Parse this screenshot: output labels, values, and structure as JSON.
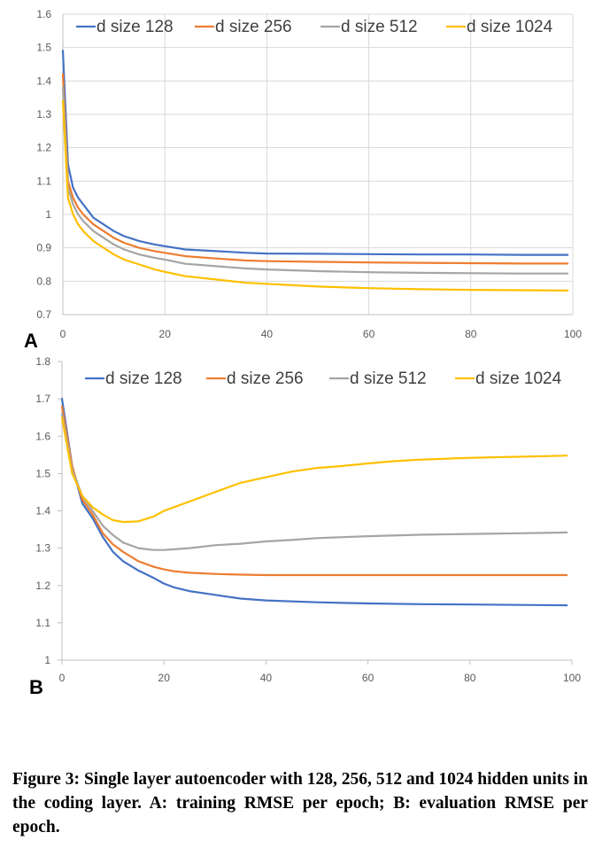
{
  "figure_caption": "Figure 3: Single layer autoencoder with 128, 256, 512 and 1024 hidden units in the coding layer. A: training RMSE per epoch; B: evaluation RMSE per epoch.",
  "colors": {
    "d size 128": "#4472c4",
    "d size 256": "#ed7d31",
    "d size 512": "#a5a5a5",
    "d size 1024": "#ffc000",
    "grid": "#d9d9d9",
    "axis": "#bfbfbf"
  },
  "chart_data": [
    {
      "panel": "A",
      "type": "line",
      "legend_position": "top",
      "grid": true,
      "xlim": [
        0,
        100
      ],
      "ylim": [
        0.7,
        1.6
      ],
      "x_ticks": [
        "0",
        "20",
        "40",
        "60",
        "80",
        "100"
      ],
      "y_ticks": [
        "0.7",
        "0.8",
        "0.9",
        "1",
        "1.1",
        "1.2",
        "1.3",
        "1.4",
        "1.5",
        "1.6"
      ],
      "series": [
        {
          "name": "d size 128",
          "x": [
            0,
            1,
            2,
            3,
            4,
            5,
            6,
            8,
            10,
            12,
            15,
            18,
            20,
            24,
            30,
            36,
            40,
            50,
            60,
            70,
            80,
            90,
            99
          ],
          "y": [
            1.49,
            1.15,
            1.08,
            1.05,
            1.03,
            1.01,
            0.99,
            0.97,
            0.95,
            0.935,
            0.92,
            0.91,
            0.905,
            0.895,
            0.89,
            0.885,
            0.883,
            0.882,
            0.881,
            0.88,
            0.88,
            0.879,
            0.879
          ]
        },
        {
          "name": "d size 256",
          "x": [
            0,
            1,
            2,
            3,
            4,
            5,
            6,
            8,
            10,
            12,
            15,
            18,
            20,
            24,
            30,
            36,
            40,
            50,
            60,
            70,
            80,
            90,
            99
          ],
          "y": [
            1.42,
            1.1,
            1.05,
            1.02,
            1.0,
            0.985,
            0.97,
            0.95,
            0.93,
            0.915,
            0.9,
            0.89,
            0.885,
            0.875,
            0.868,
            0.862,
            0.86,
            0.858,
            0.856,
            0.855,
            0.854,
            0.853,
            0.853
          ]
        },
        {
          "name": "d size 512",
          "x": [
            0,
            1,
            2,
            3,
            4,
            5,
            6,
            8,
            10,
            12,
            15,
            18,
            20,
            24,
            30,
            36,
            40,
            50,
            60,
            70,
            80,
            90,
            99
          ],
          "y": [
            1.38,
            1.08,
            1.03,
            1.0,
            0.98,
            0.965,
            0.95,
            0.93,
            0.91,
            0.895,
            0.88,
            0.87,
            0.865,
            0.852,
            0.845,
            0.838,
            0.835,
            0.83,
            0.827,
            0.825,
            0.824,
            0.823,
            0.823
          ]
        },
        {
          "name": "d size 1024",
          "x": [
            0,
            1,
            2,
            3,
            4,
            5,
            6,
            8,
            10,
            12,
            15,
            18,
            20,
            24,
            30,
            36,
            40,
            50,
            60,
            70,
            80,
            90,
            99
          ],
          "y": [
            1.34,
            1.05,
            1.0,
            0.97,
            0.95,
            0.935,
            0.92,
            0.9,
            0.88,
            0.865,
            0.85,
            0.835,
            0.828,
            0.815,
            0.805,
            0.795,
            0.792,
            0.784,
            0.779,
            0.776,
            0.774,
            0.773,
            0.772
          ]
        }
      ]
    },
    {
      "panel": "B",
      "type": "line",
      "legend_position": "top",
      "grid": false,
      "xlim": [
        0,
        100
      ],
      "ylim": [
        1.0,
        1.8
      ],
      "x_ticks": [
        "0",
        "20",
        "40",
        "60",
        "80",
        "100"
      ],
      "y_ticks": [
        "1",
        "1.1",
        "1.2",
        "1.3",
        "1.4",
        "1.5",
        "1.6",
        "1.7",
        "1.8"
      ],
      "series": [
        {
          "name": "d size 128",
          "x": [
            0,
            2,
            4,
            6,
            8,
            10,
            12,
            15,
            18,
            20,
            22,
            25,
            30,
            35,
            40,
            50,
            60,
            70,
            80,
            90,
            99
          ],
          "y": [
            1.7,
            1.52,
            1.42,
            1.38,
            1.33,
            1.29,
            1.265,
            1.24,
            1.22,
            1.205,
            1.195,
            1.185,
            1.175,
            1.165,
            1.16,
            1.155,
            1.152,
            1.15,
            1.149,
            1.148,
            1.147
          ]
        },
        {
          "name": "d size 256",
          "x": [
            0,
            2,
            4,
            6,
            8,
            10,
            12,
            15,
            18,
            20,
            22,
            25,
            30,
            35,
            40,
            50,
            60,
            70,
            80,
            90,
            99
          ],
          "y": [
            1.68,
            1.52,
            1.43,
            1.39,
            1.34,
            1.31,
            1.29,
            1.265,
            1.25,
            1.243,
            1.238,
            1.234,
            1.231,
            1.229,
            1.228,
            1.228,
            1.228,
            1.228,
            1.228,
            1.228,
            1.228
          ]
        },
        {
          "name": "d size 512",
          "x": [
            0,
            2,
            4,
            6,
            8,
            10,
            12,
            15,
            18,
            20,
            22,
            25,
            30,
            35,
            40,
            45,
            50,
            60,
            70,
            80,
            90,
            99
          ],
          "y": [
            1.66,
            1.51,
            1.44,
            1.4,
            1.36,
            1.335,
            1.315,
            1.3,
            1.295,
            1.295,
            1.297,
            1.3,
            1.308,
            1.312,
            1.318,
            1.322,
            1.327,
            1.332,
            1.336,
            1.338,
            1.34,
            1.342
          ]
        },
        {
          "name": "d size 1024",
          "x": [
            0,
            2,
            4,
            6,
            8,
            10,
            12,
            15,
            18,
            20,
            22,
            25,
            30,
            35,
            40,
            45,
            50,
            55,
            60,
            65,
            70,
            80,
            90,
            99
          ],
          "y": [
            1.65,
            1.5,
            1.44,
            1.41,
            1.39,
            1.375,
            1.37,
            1.372,
            1.385,
            1.4,
            1.41,
            1.425,
            1.45,
            1.475,
            1.49,
            1.505,
            1.515,
            1.52,
            1.527,
            1.533,
            1.537,
            1.542,
            1.545,
            1.548
          ]
        }
      ]
    }
  ]
}
